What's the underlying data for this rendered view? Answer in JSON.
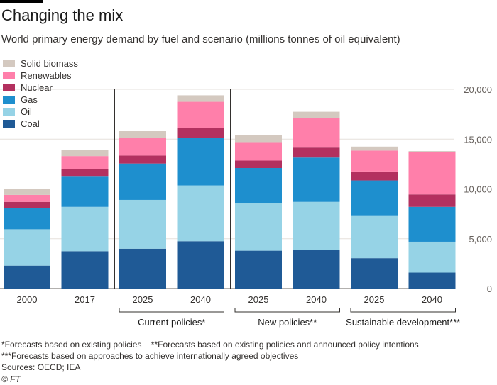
{
  "title": "Changing the mix",
  "subtitle": "World primary energy demand by fuel and scenario (millions tonnes of oil equivalent)",
  "chart_data": {
    "type": "bar",
    "stacked": true,
    "categories": [
      "2000",
      "2017",
      "2025",
      "2040",
      "2025",
      "2040",
      "2025",
      "2040"
    ],
    "groups": [
      {
        "label": "Current policies*",
        "categories": [
          2,
          3
        ]
      },
      {
        "label": "New policies**",
        "categories": [
          4,
          5
        ]
      },
      {
        "label": "Sustainable development***",
        "categories": [
          6,
          7
        ]
      }
    ],
    "series": [
      {
        "name": "Coal",
        "color": "#1f5a96",
        "values": [
          2300,
          3750,
          4000,
          4750,
          3800,
          3850,
          3050,
          1600
        ]
      },
      {
        "name": "Oil",
        "color": "#96d3e6",
        "values": [
          3650,
          4450,
          4900,
          5600,
          4750,
          4850,
          4300,
          3100
        ]
      },
      {
        "name": "Gas",
        "color": "#1e8fce",
        "values": [
          2100,
          3100,
          3650,
          4800,
          3550,
          4450,
          3500,
          3500
        ]
      },
      {
        "name": "Nuclear",
        "color": "#b3305f",
        "values": [
          650,
          700,
          800,
          950,
          750,
          1000,
          900,
          1250
        ]
      },
      {
        "name": "Renewables",
        "color": "#ff7faa",
        "values": [
          700,
          1300,
          1800,
          2650,
          1850,
          3000,
          2100,
          4250
        ]
      },
      {
        "name": "Solid biomass",
        "color": "#d4c9c0",
        "values": [
          600,
          650,
          650,
          650,
          700,
          600,
          400,
          100
        ]
      }
    ],
    "legend_order": [
      "Solid biomass",
      "Renewables",
      "Nuclear",
      "Gas",
      "Oil",
      "Coal"
    ],
    "y_ticks": [
      "20,000",
      "15,000",
      "10,000",
      "5,000",
      "0"
    ],
    "ylim": [
      0,
      20000
    ],
    "xlabel": "",
    "ylabel": ""
  },
  "footnotes": {
    "line1": "*Forecasts based on existing policies    **Forecasts based on existing policies and announced policy intentions",
    "line2": "***Forecasts based on approaches to achieve internationally agreed objectives",
    "source": "Sources: OECD; IEA",
    "credit": "© FT"
  }
}
